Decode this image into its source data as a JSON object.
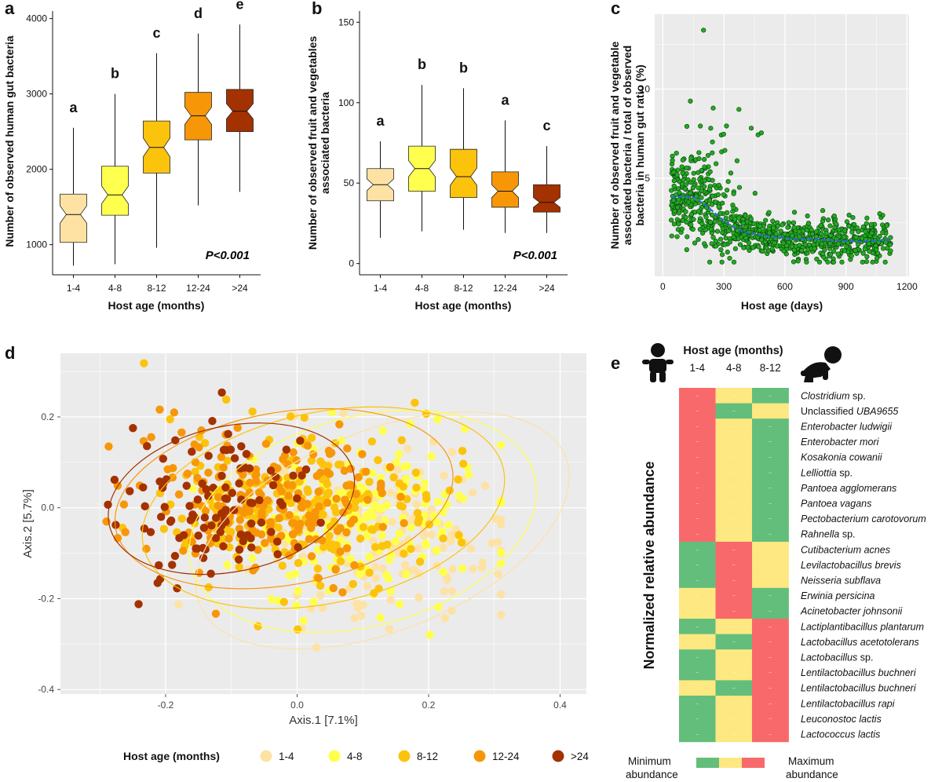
{
  "colors": {
    "age_1_4": "#fde2a3",
    "age_4_8": "#ffff4d",
    "age_8_12": "#fcc30d",
    "age_12_24": "#f79708",
    "age_gt24": "#a43100",
    "heat_min": "#63be7b",
    "heat_mid": "#fde881",
    "heat_max": "#f8696b",
    "point_green": "#22aa22",
    "trend_blue": "#2a6ad6",
    "panel_bg": "#ebebeb"
  },
  "chart_data": [
    {
      "panel": "a",
      "type": "boxplot",
      "ylabel": "Number of observed human gut bacteria",
      "xlabel": "Host age (months)",
      "ylim": [
        600,
        4100
      ],
      "yticks": [
        1000,
        2000,
        3000,
        4000
      ],
      "categories": [
        "1-4",
        "4-8",
        "8-12",
        "12-24",
        ">24"
      ],
      "groups": [
        "a",
        "b",
        "c",
        "d",
        "e"
      ],
      "stats": [
        {
          "min": 720,
          "q1": 1030,
          "median": 1400,
          "q3": 1670,
          "max": 2550
        },
        {
          "min": 740,
          "q1": 1390,
          "median": 1660,
          "q3": 2040,
          "max": 3000
        },
        {
          "min": 960,
          "q1": 1950,
          "median": 2290,
          "q3": 2640,
          "max": 3540
        },
        {
          "min": 1520,
          "q1": 2390,
          "median": 2710,
          "q3": 3020,
          "max": 3800
        },
        {
          "min": 1700,
          "q1": 2500,
          "median": 2770,
          "q3": 3060,
          "max": 3920
        }
      ],
      "annotation": "P<0.001"
    },
    {
      "panel": "b",
      "type": "boxplot",
      "ylabel": "Number of observed fruit and vegetables associated bacteria",
      "xlabel": "Host age (months)",
      "ylim": [
        -7,
        157
      ],
      "yticks": [
        0,
        50,
        100,
        150
      ],
      "categories": [
        "1-4",
        "4-8",
        "8-12",
        "12-24",
        ">24"
      ],
      "groups": [
        "a",
        "b",
        "b",
        "a",
        "c"
      ],
      "stats": [
        {
          "min": 16,
          "q1": 39,
          "median": 49,
          "q3": 59,
          "max": 76
        },
        {
          "min": 20,
          "q1": 45,
          "median": 59,
          "q3": 73,
          "max": 111
        },
        {
          "min": 21,
          "q1": 41,
          "median": 54,
          "q3": 71,
          "max": 109
        },
        {
          "min": 19,
          "q1": 35,
          "median": 45,
          "q3": 57,
          "max": 89
        },
        {
          "min": 19,
          "q1": 32,
          "median": 38,
          "q3": 49,
          "max": 73
        }
      ],
      "annotation": "P<0.001"
    },
    {
      "panel": "c",
      "type": "scatter",
      "ylabel": "Number of observed fruit and vegetable associated bacteria / total of observed bacteria in human gut ratio (%)",
      "xlabel": "Host age (days)",
      "xlim": [
        -40,
        1210
      ],
      "ylim": [
        -0.5,
        14.2
      ],
      "xticks": [
        0,
        300,
        600,
        900,
        1200
      ],
      "yticks": [
        5,
        10
      ],
      "trend_x": [
        40,
        100,
        160,
        220,
        280,
        340,
        400,
        480,
        560,
        640,
        720,
        800,
        880,
        960,
        1040,
        1120
      ],
      "trend_y": [
        3.9,
        4.0,
        3.9,
        3.4,
        2.8,
        2.3,
        2.0,
        1.8,
        1.7,
        1.6,
        1.6,
        1.55,
        1.5,
        1.45,
        1.5,
        1.55
      ],
      "n_points": 900,
      "x_range_points": [
        40,
        1120
      ]
    },
    {
      "panel": "d",
      "type": "scatter",
      "xlabel": "Axis.1   [7.1%]",
      "ylabel": "Axis.2   [5.7%]",
      "xlim": [
        -0.36,
        0.44
      ],
      "ylim": [
        -0.41,
        0.34
      ],
      "xticks": [
        -0.2,
        0.0,
        0.2,
        0.4
      ],
      "yticks": [
        -0.4,
        -0.2,
        0.0,
        0.2
      ],
      "tick_labels_x": [
        "-0.2",
        "0.0",
        "0.2",
        "0.4"
      ],
      "tick_labels_y": [
        "-0.4",
        "-0.2",
        "0.0",
        "0.2"
      ],
      "series": [
        {
          "name": "1-4",
          "center": [
            0.12,
            -0.06
          ],
          "spread": [
            0.1,
            0.09
          ],
          "ellipse": {
            "cx": 0.13,
            "cy": -0.05,
            "rx": 0.3,
            "ry": 0.22,
            "angle": -22
          }
        },
        {
          "name": "4-8",
          "center": [
            0.1,
            -0.03
          ],
          "spread": [
            0.1,
            0.09
          ],
          "ellipse": {
            "cx": 0.1,
            "cy": -0.03,
            "rx": 0.27,
            "ry": 0.23,
            "angle": -15
          }
        },
        {
          "name": "8-12",
          "center": [
            0.0,
            0.0
          ],
          "spread": [
            0.1,
            0.09
          ],
          "ellipse": {
            "cx": 0.04,
            "cy": 0.0,
            "rx": 0.28,
            "ry": 0.21,
            "angle": -12
          }
        },
        {
          "name": "12-24",
          "center": [
            -0.05,
            0.02
          ],
          "spread": [
            0.09,
            0.08
          ],
          "ellipse": {
            "cx": -0.02,
            "cy": 0.02,
            "rx": 0.26,
            "ry": 0.19,
            "angle": -10
          }
        },
        {
          "name": ">24",
          "center": [
            -0.12,
            0.0
          ],
          "spread": [
            0.08,
            0.08
          ],
          "ellipse": {
            "cx": -0.1,
            "cy": 0.02,
            "rx": 0.19,
            "ry": 0.16,
            "angle": -12
          }
        }
      ],
      "legend_title": "Host age (months)",
      "legend": [
        "1-4",
        "4-8",
        "8-12",
        "12-24",
        ">24"
      ]
    },
    {
      "panel": "e",
      "type": "heatmap",
      "title": "Host age (months)",
      "columns": [
        "1-4",
        "4-8",
        "8-12"
      ],
      "ylabel": "Normalized relative abundance",
      "rows": [
        {
          "genus": "Clostridium",
          "suffix": " sp.",
          "label": "Clostridium sp.",
          "italic_all": false,
          "values": [
            2,
            1,
            0
          ]
        },
        {
          "genus": "UBA9655",
          "prefix": "Unclassified ",
          "label": "Unclassified UBA9655",
          "italic_all": false,
          "values": [
            2,
            0,
            1
          ]
        },
        {
          "genus": "Enterobacter ludwigii",
          "label": "Enterobacter ludwigii",
          "italic_all": true,
          "values": [
            2,
            1,
            0
          ]
        },
        {
          "genus": "Enterobacter mori",
          "label": "Enterobacter mori",
          "italic_all": true,
          "values": [
            2,
            1,
            0
          ]
        },
        {
          "genus": "Kosakonia cowanii",
          "label": "Kosakonia cowanii",
          "italic_all": true,
          "values": [
            2,
            1,
            0
          ]
        },
        {
          "genus": "Lelliottia",
          "suffix": " sp.",
          "label": "Lelliottia sp.",
          "italic_all": false,
          "values": [
            2,
            1,
            0
          ]
        },
        {
          "genus": "Pantoea agglomerans",
          "label": "Pantoea agglomerans",
          "italic_all": true,
          "values": [
            2,
            1,
            0
          ]
        },
        {
          "genus": "Pantoea vagans",
          "label": "Pantoea vagans",
          "italic_all": true,
          "values": [
            2,
            1,
            0
          ]
        },
        {
          "genus": "Pectobacterium carotovorum",
          "label": "Pectobacterium carotovorum",
          "italic_all": true,
          "values": [
            2,
            1,
            0
          ]
        },
        {
          "genus": "Rahnella",
          "suffix": " sp.",
          "label": "Rahnella sp.",
          "italic_all": false,
          "values": [
            2,
            1,
            0
          ]
        },
        {
          "genus": "Cutibacterium acnes",
          "label": "Cutibacterium acnes",
          "italic_all": true,
          "values": [
            0,
            2,
            1
          ]
        },
        {
          "genus": "Levilactobacillus brevis",
          "label": "Levilactobacillus brevis",
          "italic_all": true,
          "values": [
            0,
            2,
            1
          ]
        },
        {
          "genus": "Neisseria subflava",
          "label": "Neisseria subflava",
          "italic_all": true,
          "values": [
            0,
            2,
            1
          ]
        },
        {
          "genus": "Erwinia persicina",
          "label": "Erwinia persicina",
          "italic_all": true,
          "values": [
            1,
            2,
            0
          ]
        },
        {
          "genus": "Acinetobacter johnsonii",
          "label": "Acinetobacter johnsonii",
          "italic_all": true,
          "values": [
            1,
            2,
            0
          ]
        },
        {
          "genus": "Lactiplantibacillus plantarum",
          "label": "Lactiplantibacillus plantarum",
          "italic_all": true,
          "values": [
            0,
            1,
            2
          ]
        },
        {
          "genus": "Lactobacillus acetotolerans",
          "label": "Lactobacillus acetotolerans",
          "italic_all": true,
          "values": [
            1,
            0,
            2
          ]
        },
        {
          "genus": "Lactobacillus",
          "suffix": " sp.",
          "label": "Lactobacillus sp.",
          "italic_all": false,
          "values": [
            0,
            1,
            2
          ]
        },
        {
          "genus": "Lentilactobacillus buchneri",
          "label": "Lentilactobacillus buchneri",
          "italic_all": true,
          "values": [
            0,
            1,
            2
          ]
        },
        {
          "genus": "Lentilactobacillus buchneri",
          "label": "Lentilactobacillus buchneri",
          "italic_all": true,
          "values": [
            1,
            0,
            2
          ]
        },
        {
          "genus": "Lentilactobacillus rapi",
          "label": "Lentilactobacillus rapi",
          "italic_all": true,
          "values": [
            0,
            1,
            2
          ]
        },
        {
          "genus": "Leuconostoc lactis",
          "label": "Leuconostoc lactis",
          "italic_all": true,
          "values": [
            0,
            1,
            2
          ]
        },
        {
          "genus": "Lactococcus lactis",
          "label": "Lactococcus lactis",
          "italic_all": true,
          "values": [
            0,
            1,
            2
          ]
        }
      ],
      "legend_min": "Minimum abundance",
      "legend_max": "Maximum abundance",
      "legend_min_lines": [
        "Minimum",
        "abundance"
      ],
      "legend_max_lines": [
        "Maximum",
        "abundance"
      ]
    }
  ],
  "panels": [
    "a",
    "b",
    "c",
    "d",
    "e"
  ]
}
